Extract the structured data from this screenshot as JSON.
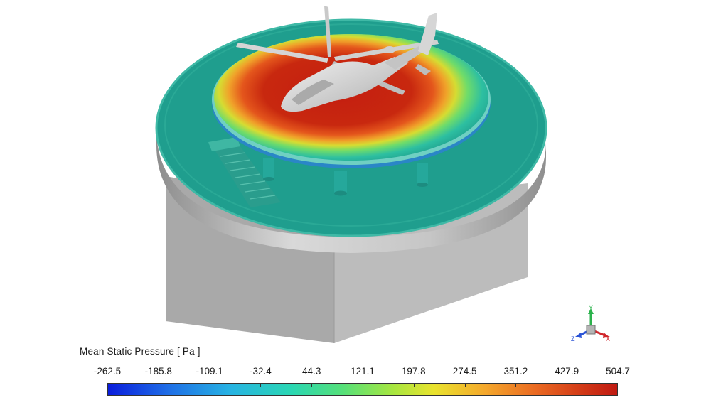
{
  "scene": {
    "subject": "helicopter-on-helideck",
    "colors": {
      "background": "#ffffff",
      "platform_gray": "#b9b9b9",
      "deck_teal": "#1f9e8e",
      "high_pressure": "#c8240f",
      "low_pressure": "#0a1ddc"
    }
  },
  "legend": {
    "title": "Mean Static Pressure [ Pa ]",
    "ticks": [
      "-262.5",
      "-185.8",
      "-109.1",
      "-32.4",
      "44.3",
      "121.1",
      "197.8",
      "274.5",
      "351.2",
      "427.9",
      "504.7"
    ],
    "min": -262.5,
    "max": 504.7
  },
  "triad": {
    "x_label": "X",
    "y_label": "Y",
    "z_label": "Z",
    "x_color": "#d0262b",
    "y_color": "#2bb24c",
    "z_color": "#2a53d6"
  }
}
